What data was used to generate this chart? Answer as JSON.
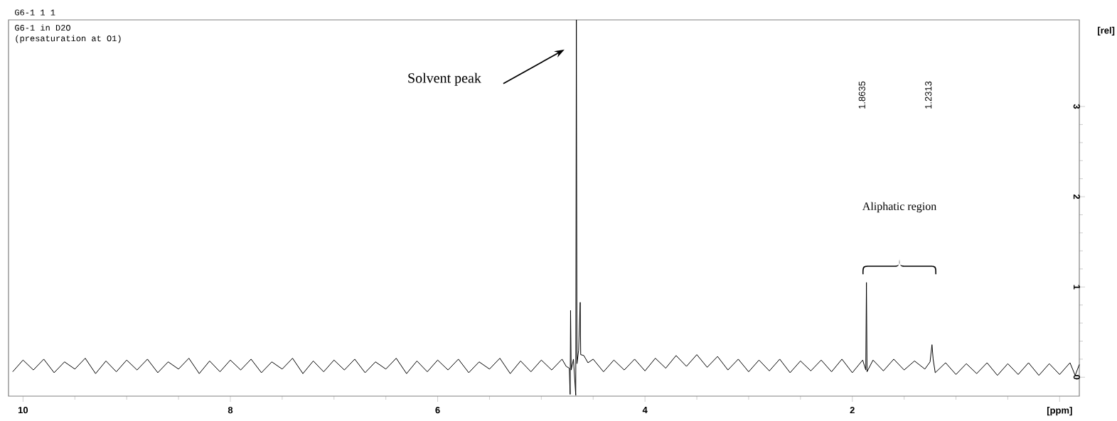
{
  "chart_data": {
    "type": "line",
    "title": "G6-1 1 1",
    "annotations": [
      "G6-1 in D2O",
      "(presaturation at O1)",
      "Solvent peak",
      "Aliphatic region",
      "1.8635",
      "1.2313"
    ],
    "ylabel": "[rel]",
    "xlim": [
      10.14,
      -0.19
    ],
    "ylim": [
      -0.21,
      3.96
    ],
    "xticks": [
      10,
      8,
      6,
      4,
      2,
      {
        "value": 0,
        "label": "[ppm]"
      }
    ],
    "yticks": [
      0,
      1,
      2,
      3
    ],
    "grid": false,
    "series": [
      {
        "color": "#000000",
        "x": [
          10.1,
          10.0,
          9.9,
          9.8,
          9.7,
          9.6,
          9.5,
          9.4,
          9.3,
          9.2,
          9.1,
          9.0,
          8.9,
          8.8,
          8.7,
          8.6,
          8.5,
          8.4,
          8.3,
          8.2,
          8.1,
          8.0,
          7.9,
          7.8,
          7.7,
          7.6,
          7.5,
          7.4,
          7.3,
          7.2,
          7.1,
          7.0,
          6.9,
          6.8,
          6.7,
          6.6,
          6.5,
          6.4,
          6.3,
          6.2,
          6.1,
          6.0,
          5.9,
          5.8,
          5.7,
          5.6,
          5.5,
          5.4,
          5.3,
          5.2,
          5.1,
          5.0,
          4.9,
          4.8,
          4.76,
          4.73,
          4.722,
          4.718,
          4.712,
          4.69,
          4.668,
          4.662,
          4.656,
          4.64,
          4.625,
          4.62,
          4.59,
          4.55,
          4.5,
          4.4,
          4.3,
          4.2,
          4.1,
          4.0,
          3.9,
          3.8,
          3.7,
          3.6,
          3.5,
          3.4,
          3.3,
          3.2,
          3.1,
          3.0,
          2.9,
          2.8,
          2.7,
          2.6,
          2.5,
          2.4,
          2.3,
          2.2,
          2.1,
          2.0,
          1.9,
          1.87,
          1.8635,
          1.858,
          1.8,
          1.7,
          1.6,
          1.5,
          1.4,
          1.3,
          1.25,
          1.2313,
          1.22,
          1.2,
          1.1,
          1.0,
          0.9,
          0.8,
          0.7,
          0.6,
          0.5,
          0.4,
          0.3,
          0.2,
          0.1,
          0.0,
          -0.1,
          -0.15,
          -0.19
        ],
        "values": [
          0.06,
          0.19,
          0.08,
          0.2,
          0.05,
          0.17,
          0.09,
          0.21,
          0.04,
          0.18,
          0.06,
          0.19,
          0.08,
          0.2,
          0.05,
          0.17,
          0.09,
          0.21,
          0.04,
          0.18,
          0.06,
          0.19,
          0.08,
          0.2,
          0.05,
          0.17,
          0.09,
          0.21,
          0.04,
          0.18,
          0.06,
          0.19,
          0.08,
          0.2,
          0.05,
          0.17,
          0.09,
          0.21,
          0.04,
          0.18,
          0.06,
          0.19,
          0.08,
          0.2,
          0.05,
          0.17,
          0.09,
          0.21,
          0.04,
          0.18,
          0.06,
          0.19,
          0.08,
          0.2,
          0.12,
          0.1,
          -0.19,
          0.74,
          0.08,
          0.2,
          -0.2,
          3.96,
          0.15,
          0.3,
          0.83,
          0.25,
          0.24,
          0.16,
          0.2,
          0.06,
          0.19,
          0.08,
          0.2,
          0.07,
          0.21,
          0.1,
          0.24,
          0.12,
          0.25,
          0.11,
          0.23,
          0.08,
          0.2,
          0.06,
          0.19,
          0.07,
          0.2,
          0.05,
          0.18,
          0.07,
          0.19,
          0.06,
          0.2,
          0.05,
          0.19,
          0.08,
          1.05,
          0.06,
          0.19,
          0.07,
          0.2,
          0.08,
          0.18,
          0.09,
          0.17,
          0.36,
          0.2,
          0.05,
          0.16,
          0.03,
          0.15,
          0.04,
          0.16,
          0.02,
          0.15,
          0.03,
          0.16,
          0.02,
          0.15,
          0.03,
          0.16,
          0.02,
          0.14
        ]
      }
    ]
  }
}
